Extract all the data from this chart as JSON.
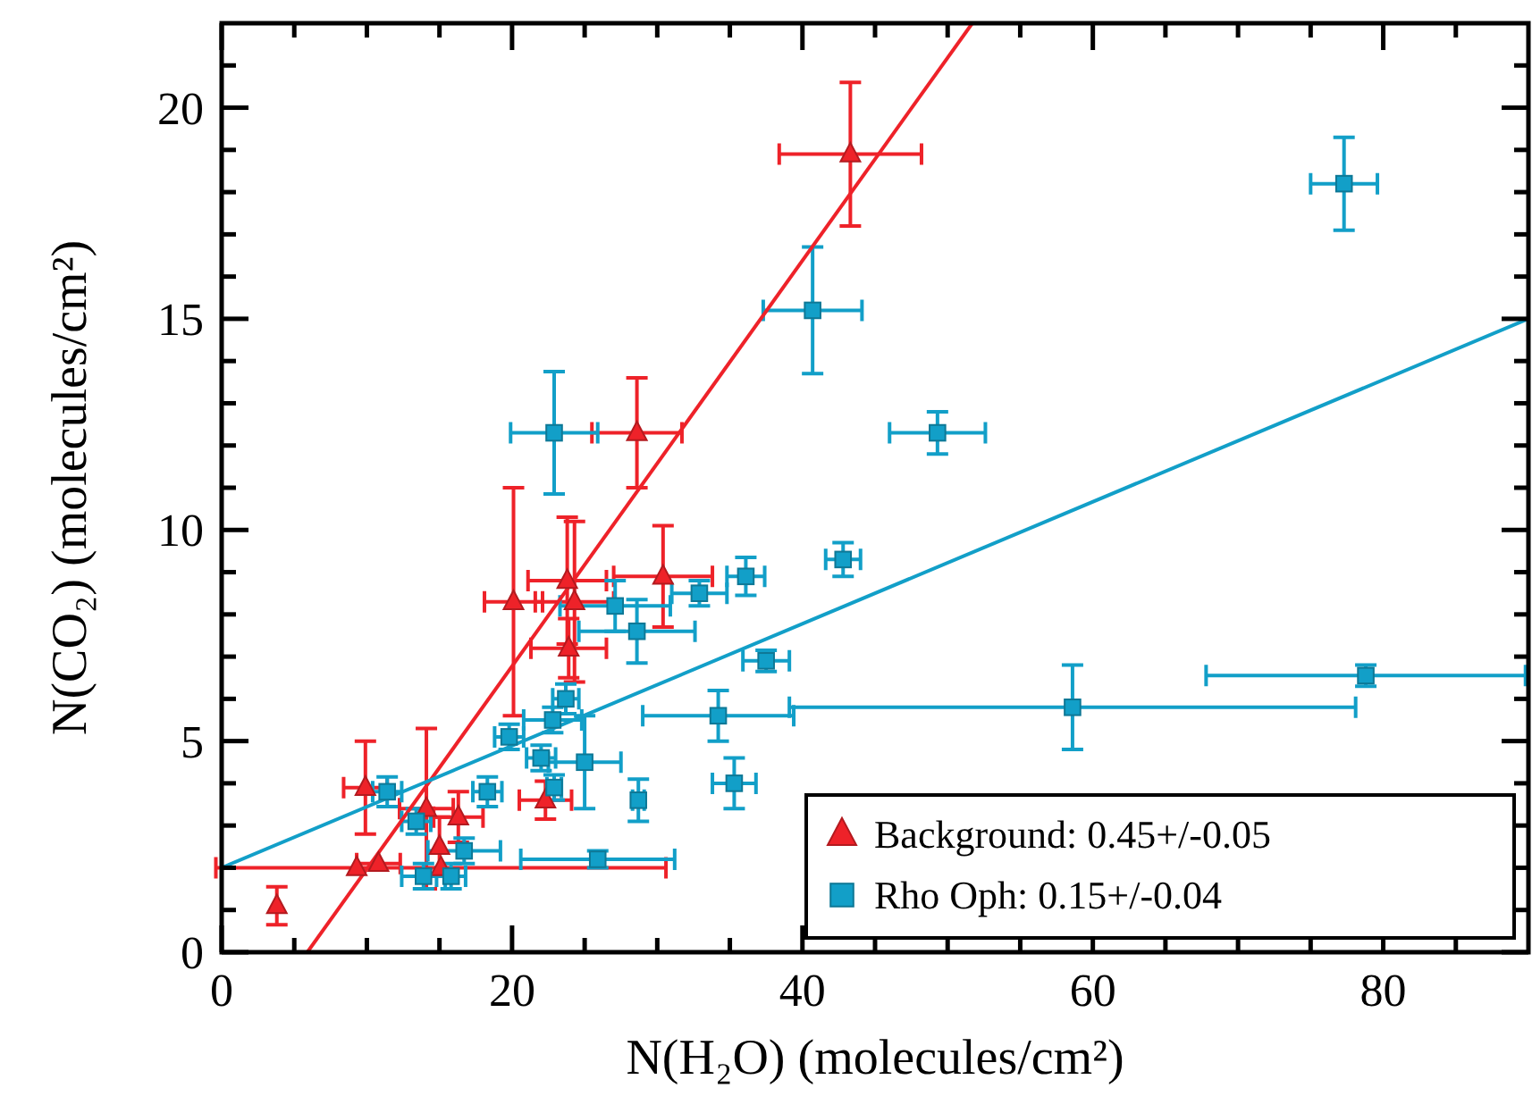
{
  "chart_data": {
    "type": "scatter",
    "xlabel": "N(H₂O) (molecules/cm²)",
    "ylabel": "N(CO₂) (molecules/cm²)",
    "xlim": [
      0,
      90
    ],
    "ylim": [
      0,
      22
    ],
    "xticks": [
      0,
      {
        "value": 5,
        "label": null
      },
      {
        "value": 10,
        "label": null
      },
      {
        "value": 15,
        "label": null
      },
      20,
      {
        "value": 25,
        "label": null
      },
      {
        "value": 30,
        "label": null
      },
      {
        "value": 35,
        "label": null
      },
      40,
      {
        "value": 45,
        "label": null
      },
      {
        "value": 50,
        "label": null
      },
      {
        "value": 55,
        "label": null
      },
      60,
      {
        "value": 65,
        "label": null
      },
      {
        "value": 70,
        "label": null
      },
      {
        "value": 75,
        "label": null
      },
      80,
      {
        "value": 85,
        "label": null
      }
    ],
    "yticks": [
      0,
      {
        "value": 1,
        "label": null
      },
      {
        "value": 2,
        "label": null
      },
      {
        "value": 3,
        "label": null
      },
      {
        "value": 4,
        "label": null
      },
      5,
      {
        "value": 6,
        "label": null
      },
      {
        "value": 7,
        "label": null
      },
      {
        "value": 8,
        "label": null
      },
      {
        "value": 9,
        "label": null
      },
      10,
      {
        "value": 11,
        "label": null
      },
      {
        "value": 12,
        "label": null
      },
      {
        "value": 13,
        "label": null
      },
      {
        "value": 14,
        "label": null
      },
      15,
      {
        "value": 16,
        "label": null
      },
      {
        "value": 17,
        "label": null
      },
      {
        "value": 18,
        "label": null
      },
      {
        "value": 19,
        "label": null
      },
      20,
      {
        "value": 21,
        "label": null
      }
    ],
    "grid": false,
    "legend": "bottom right",
    "series": [
      {
        "name": "Background: 0.45+/-0.05",
        "marker": "triangle",
        "color": "#ee2229",
        "x": [
          3.8,
          9.9,
          9.3,
          10.8,
          15.1,
          14.1,
          16.3,
          15.0,
          22.3,
          43.3,
          28.6,
          30.4,
          23.8,
          24.3,
          20.1,
          23.9
        ],
        "values": [
          1.1,
          3.9,
          2.0,
          2.1,
          2.0,
          3.4,
          3.2,
          2.5,
          3.6,
          18.9,
          12.3,
          8.9,
          8.8,
          8.3,
          8.3,
          7.2
        ],
        "errors": [
          0.45,
          1.1,
          null,
          null,
          null,
          1.9,
          0.6,
          0.7,
          0.45,
          1.7,
          1.3,
          1.2,
          1.5,
          1.9,
          2.7,
          0.7
        ],
        "xerrors": [
          null,
          1.5,
          null,
          1.5,
          15.5,
          1.85,
          1.7,
          null,
          1.8,
          4.9,
          3.1,
          3.4,
          2.7,
          2.7,
          2,
          2.6
        ]
      },
      {
        "name": "Rho Oph: 0.15+/-0.04",
        "marker": "square",
        "color": "#129fc8",
        "x": [
          40.7,
          22.9,
          49.3,
          42.8,
          36.1,
          32.9,
          27.1,
          28.6,
          37.5,
          23.7,
          22.8,
          19.8,
          34.2,
          25.0,
          22.0,
          35.3,
          28.7,
          22.9,
          25.9,
          11.4,
          18.3,
          13.4,
          13.9,
          15.8,
          16.7,
          77.3,
          78.8,
          58.6
        ],
        "values": [
          15.2,
          12.3,
          12.3,
          9.3,
          8.9,
          8.5,
          8.2,
          7.6,
          6.9,
          6.0,
          5.5,
          5.1,
          5.6,
          4.5,
          4.6,
          4.0,
          3.6,
          3.9,
          2.2,
          3.8,
          3.8,
          3.1,
          1.8,
          1.8,
          2.4,
          18.2,
          6.55,
          5.8
        ],
        "errors": [
          1.5,
          1.45,
          0.5,
          0.4,
          0.45,
          0.3,
          0.6,
          0.75,
          0.25,
          0.35,
          0.3,
          0.3,
          0.6,
          1.1,
          0.3,
          0.6,
          0.5,
          0.3,
          0.2,
          0.35,
          0.35,
          0.3,
          0.3,
          0.3,
          0.3,
          1.1,
          0.25,
          1.0
        ],
        "xerrors": [
          3.4,
          3.0,
          3.3,
          1.2,
          1.3,
          1.9,
          3.8,
          4.0,
          1.6,
          0.9,
          2.0,
          1.0,
          5.2,
          2.5,
          1.0,
          1.5,
          0.4,
          0.5,
          5.3,
          1.0,
          1.0,
          1.0,
          1.5,
          1.0,
          2.5,
          2.3,
          11,
          19.5
        ]
      },
      {
        "type": "line",
        "color": "#ee2229",
        "x": [
          5.9,
          51.7
        ],
        "values": [
          0,
          22
        ]
      },
      {
        "type": "line",
        "color": "#129fc8",
        "x": [
          0,
          90
        ],
        "values": [
          2.0,
          15.0
        ]
      }
    ]
  }
}
